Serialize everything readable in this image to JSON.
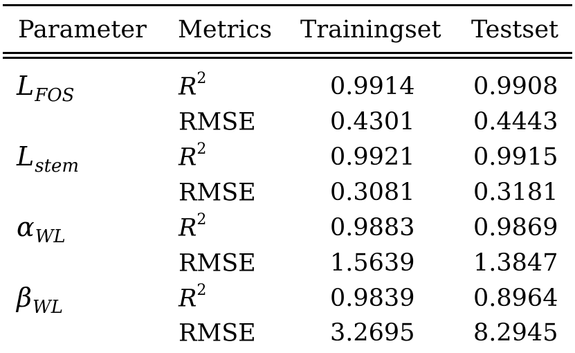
{
  "header": {
    "parameter": "Parameter",
    "metrics": "Metrics",
    "trainingset": "Trainingset",
    "testset": "Testset"
  },
  "rows": [
    {
      "param_base": "L",
      "param_sub": "FOS",
      "metric_base": "R",
      "metric_sup": "2",
      "train": "0.9914",
      "test": "0.9908"
    },
    {
      "param_base": "",
      "param_sub": "",
      "metric_base": "RMSE",
      "metric_sup": "",
      "train": "0.4301",
      "test": "0.4443"
    },
    {
      "param_base": "L",
      "param_sub": "stem",
      "metric_base": "R",
      "metric_sup": "2",
      "train": "0.9921",
      "test": "0.9915"
    },
    {
      "param_base": "",
      "param_sub": "",
      "metric_base": "RMSE",
      "metric_sup": "",
      "train": "0.3081",
      "test": "0.3181"
    },
    {
      "param_base": "α",
      "param_sub": "WL",
      "metric_base": "R",
      "metric_sup": "2",
      "train": "0.9883",
      "test": "0.9869"
    },
    {
      "param_base": "",
      "param_sub": "",
      "metric_base": "RMSE",
      "metric_sup": "",
      "train": "1.5639",
      "test": "1.3847"
    },
    {
      "param_base": "β",
      "param_sub": "WL",
      "metric_base": "R",
      "metric_sup": "2",
      "train": "0.9839",
      "test": "0.8964"
    },
    {
      "param_base": "",
      "param_sub": "",
      "metric_base": "RMSE",
      "metric_sup": "",
      "train": "3.2695",
      "test": "8.2945"
    }
  ]
}
